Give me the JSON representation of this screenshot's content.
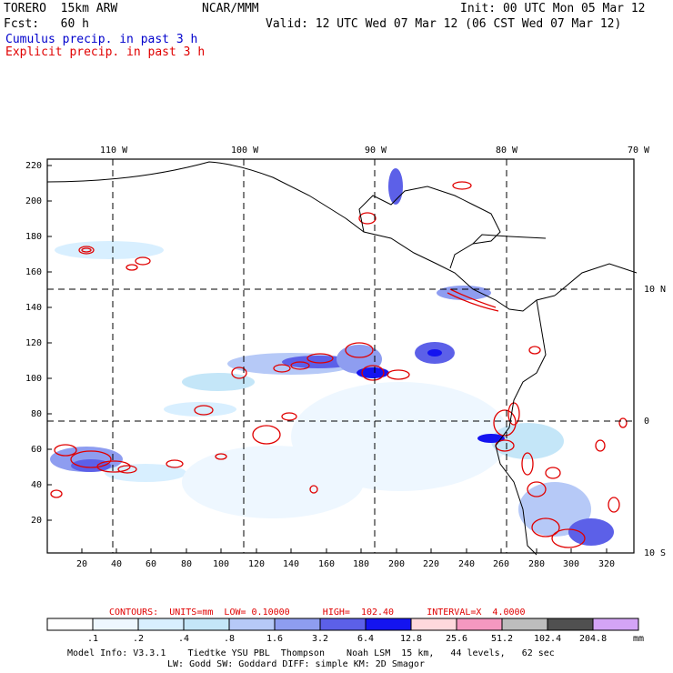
{
  "header": {
    "model": "TORERO  15km ARW",
    "org": "NCAR/MMM",
    "init": "Init: 00 UTC Mon 05 Mar 12",
    "fcst": "Fcst:   60 h",
    "valid": "Valid: 12 UTC Wed 07 Mar 12 (06 CST Wed 07 Mar 12)",
    "field1": "Cumulus precip. in past 3 h",
    "field2": "Explicit precip. in past 3 h"
  },
  "axes": {
    "top_lon_labels": [
      "110 W",
      "100 W",
      "90 W",
      "80 W",
      "70 W"
    ],
    "right_lat_labels": [
      "10 N",
      "0",
      "10 S"
    ],
    "y_ticks": [
      "220",
      "200",
      "180",
      "160",
      "140",
      "120",
      "100",
      "80",
      "60",
      "40",
      "20"
    ],
    "x_ticks": [
      "20",
      "40",
      "60",
      "80",
      "100",
      "120",
      "140",
      "160",
      "180",
      "200",
      "220",
      "240",
      "260",
      "280",
      "300",
      "320"
    ]
  },
  "contour_info": "CONTOURS:  UNITS=mm  LOW= 0.10000      HIGH=  102.40      INTERVAL=X  4.0000",
  "colorbar": {
    "labels": [
      ".1",
      ".2",
      ".4",
      ".8",
      "1.6",
      "3.2",
      "6.4",
      "12.8",
      "25.6",
      "51.2",
      "102.4",
      "204.8"
    ],
    "unit": "mm",
    "colors": [
      "#ffffff",
      "#eef7ff",
      "#d8efff",
      "#c4e6f8",
      "#b6c9f7",
      "#8e9df0",
      "#5c60e8",
      "#1414f0",
      "#ffd8dc",
      "#f598c0",
      "#bdbdbd",
      "#505050",
      "#d4a4f6"
    ]
  },
  "footer": {
    "line1": "Model Info: V3.3.1    Tiedtke YSU PBL  Thompson    Noah LSM  15 km,   44 levels,   62 sec",
    "line2": "LW: Godd SW: Goddard DIFF: simple KM: 2D Smagor"
  }
}
